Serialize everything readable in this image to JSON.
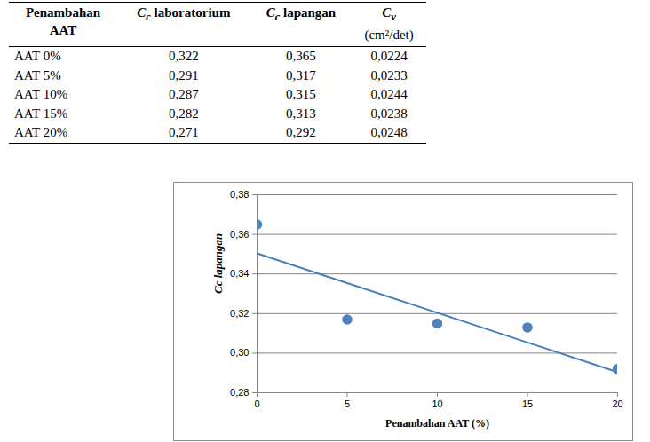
{
  "table": {
    "header": [
      {
        "lines": [
          "Penambahan",
          "AAT"
        ]
      },
      {
        "symbol": "C",
        "subscript": "c",
        "text": " laboratorium"
      },
      {
        "symbol": "C",
        "subscript": "c",
        "text": " lapangan"
      },
      {
        "symbol": "C",
        "subscript": "v",
        "unit": "(cm²/det)"
      }
    ],
    "rows": [
      [
        "AAT 0%",
        "0,322",
        "0,365",
        "0,0224"
      ],
      [
        "AAT 5%",
        "0,291",
        "0,317",
        "0,0233"
      ],
      [
        "AAT 10%",
        "0,287",
        "0,315",
        "0,0244"
      ],
      [
        "AAT 15%",
        "0,282",
        "0,313",
        "0,0238"
      ],
      [
        "AAT 20%",
        "0,271",
        "0,292",
        "0,0248"
      ]
    ]
  },
  "chart_data": {
    "type": "scatter",
    "x_label": "Penambahan AAT (%)",
    "y_label": "Cc lapangan",
    "x": [
      0,
      5,
      10,
      15,
      20
    ],
    "series": [
      {
        "type": "scatter",
        "color": "#4f81bd",
        "marker": "circle",
        "values": [
          0.365,
          0.317,
          0.315,
          0.313,
          0.292
        ]
      },
      {
        "type": "line",
        "color": "#4a7ebb",
        "line_style": "solid",
        "values": [
          0.3504,
          0.3354,
          0.3204,
          0.3054,
          0.2904
        ]
      }
    ],
    "xlim": [
      0,
      20
    ],
    "xticks": [
      0,
      5,
      10,
      15,
      20
    ],
    "ylim": [
      0.28,
      0.38
    ],
    "yticks": [
      {
        "value": 0.28,
        "label": "0,28"
      },
      {
        "value": 0.3,
        "label": "0,30"
      },
      {
        "value": 0.32,
        "label": "0,32"
      },
      {
        "value": 0.34,
        "label": "0,34"
      },
      {
        "value": 0.36,
        "label": "0,36"
      },
      {
        "value": 0.38,
        "label": "0,38"
      }
    ],
    "grid": true
  }
}
